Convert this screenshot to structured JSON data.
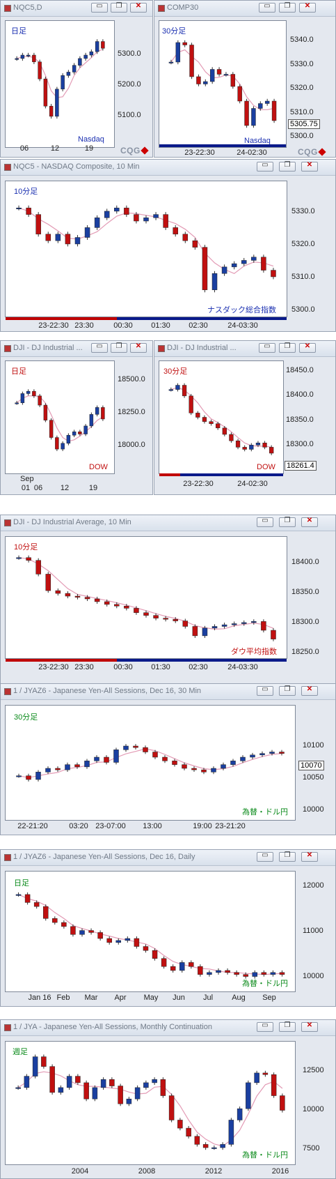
{
  "buttons": {
    "minimize": "▭",
    "restore": "❐",
    "close": "✕"
  },
  "brand": "CQG",
  "colors": {
    "up": "#1a3fa0",
    "down": "#c01010",
    "frame": "#e4e8ef"
  },
  "windows": [
    {
      "id": "nqc5d",
      "title": "NQC5,D",
      "period": "日足",
      "label": "Nasdaq",
      "yticks": [
        "5300.0",
        "5200.0",
        "5100.0"
      ],
      "xticks": [
        "06",
        "12",
        "19"
      ]
    },
    {
      "id": "comp30",
      "title": "COMP30",
      "period": "30分足",
      "label": "Nasdaq",
      "price": "5305.75",
      "yticks": [
        "5340.0",
        "5330.0",
        "5320.0",
        "5310.0",
        "5300.0"
      ],
      "xticks": [
        "23-22:30",
        "24-02:30"
      ]
    },
    {
      "id": "nqc5m",
      "title": "NQC5 - NASDAQ Composite, 10 Min",
      "period": "10分足",
      "label": "ナスダック総合指数",
      "yticks": [
        "5330.0",
        "5320.0",
        "5310.0",
        "5300.0"
      ],
      "xticks": [
        "23-22:30",
        "23:30",
        "00:30",
        "01:30",
        "02:30",
        "24-03:30"
      ]
    },
    {
      "id": "djid",
      "title": "DJI - DJ Industrial ...",
      "period": "日足",
      "label": "DOW",
      "yticks": [
        "18500.0",
        "18250.0",
        "18000.0"
      ],
      "xticks": [
        "01",
        "06",
        "12",
        "19"
      ],
      "xsub": "Sep"
    },
    {
      "id": "dji30",
      "title": "DJI - DJ Industrial ...",
      "period": "30分足",
      "label": "DOW",
      "price": "18261.4",
      "yticks": [
        "18450.0",
        "18400.0",
        "18350.0",
        "18300.0",
        "18250.0"
      ],
      "xticks": [
        "23-22:30",
        "24-02:30"
      ]
    },
    {
      "id": "djim",
      "title": "DJI - DJ Industrial Average, 10 Min",
      "period": "10分足",
      "label": "ダウ平均指数",
      "yticks": [
        "18400.0",
        "18350.0",
        "18300.0",
        "18250.0"
      ],
      "xticks": [
        "23-22:30",
        "23:30",
        "00:30",
        "01:30",
        "02:30",
        "24-03:30"
      ]
    },
    {
      "id": "jy30",
      "title": "1 / JYAZ6 - Japanese Yen-All Sessions, Dec 16, 30 Min",
      "period": "30分足",
      "label": "為替・ドル円",
      "price": "10070",
      "yticks": [
        "10100",
        "10050",
        "10000"
      ],
      "xticks": [
        "22-21:20",
        "03:20",
        "23-07:00",
        "13:00",
        "19:00",
        "23-21:20"
      ]
    },
    {
      "id": "jyd",
      "title": "1 / JYAZ6 - Japanese Yen-All Sessions, Dec 16, Daily",
      "period": "日足",
      "label": "為替・ドル円",
      "yticks": [
        "12000",
        "11000",
        "10000"
      ],
      "xticks": [
        "Jan 16",
        "Feb",
        "Mar",
        "Apr",
        "May",
        "Jun",
        "Jul",
        "Aug",
        "Sep"
      ]
    },
    {
      "id": "jym",
      "title": "1 / JYA - Japanese Yen-All Sessions, Monthly Continuation",
      "period": "週足",
      "label": "為替・ドル円",
      "yticks": [
        "12500",
        "10000",
        "7500"
      ],
      "xticks": [
        "2004",
        "2008",
        "2012",
        "2016"
      ]
    }
  ],
  "chart_data": [
    {
      "type": "candlestick",
      "id": "nqc5d",
      "x_ticks": [
        "06",
        "12",
        "19"
      ],
      "ylim": [
        5050,
        5380
      ],
      "close": [
        5290,
        5300,
        5300,
        5280,
        5230,
        5150,
        5120,
        5200,
        5240,
        5250,
        5270,
        5290,
        5300,
        5310,
        5340,
        5320
      ]
    },
    {
      "type": "candlestick",
      "id": "comp30",
      "x_ticks": [
        "23-22:30",
        "24-02:30"
      ],
      "ylim": [
        5298,
        5344
      ],
      "last": 5305.75,
      "close": [
        5330,
        5338,
        5337,
        5324,
        5321,
        5322,
        5327,
        5325,
        5325,
        5320,
        5314,
        5304,
        5311,
        5313,
        5314,
        5306
      ]
    },
    {
      "type": "candlestick",
      "id": "nqc5m",
      "x_ticks": [
        "23-22:30",
        "23:30",
        "00:30",
        "01:30",
        "02:30",
        "24-03:30"
      ],
      "ylim": [
        5297,
        5334
      ],
      "close": [
        5328,
        5326,
        5320,
        5318,
        5320,
        5317,
        5319,
        5322,
        5325,
        5327,
        5328,
        5326,
        5324,
        5325,
        5326,
        5322,
        5320,
        5318,
        5316,
        5303,
        5308,
        5310,
        5311,
        5312,
        5313,
        5309,
        5307
      ]
    },
    {
      "type": "candlestick",
      "id": "djid",
      "x_ticks": [
        "01",
        "06",
        "12",
        "19"
      ],
      "ylim": [
        17850,
        18700
      ],
      "close": [
        18400,
        18480,
        18500,
        18460,
        18380,
        18250,
        18100,
        18000,
        18050,
        18120,
        18150,
        18130,
        18200,
        18300,
        18360,
        18260
      ]
    },
    {
      "type": "candlestick",
      "id": "dji30",
      "x_ticks": [
        "23-22:30",
        "24-02:30"
      ],
      "ylim": [
        18230,
        18460
      ],
      "last": 18261.4,
      "close": [
        18410,
        18420,
        18395,
        18355,
        18345,
        18335,
        18330,
        18320,
        18305,
        18290,
        18275,
        18270,
        18280,
        18285,
        18275,
        18261
      ]
    },
    {
      "type": "candlestick",
      "id": "djim",
      "x_ticks": [
        "23-22:30",
        "23:30",
        "00:30",
        "01:30",
        "02:30",
        "24-03:30"
      ],
      "ylim": [
        18240,
        18435
      ],
      "close": [
        18410,
        18405,
        18380,
        18350,
        18345,
        18340,
        18338,
        18335,
        18330,
        18325,
        18322,
        18318,
        18310,
        18305,
        18300,
        18298,
        18295,
        18285,
        18268,
        18282,
        18285,
        18288,
        18290,
        18292,
        18294,
        18278,
        18262
      ]
    },
    {
      "type": "candlestick",
      "id": "jy30",
      "x_ticks": [
        "22-21:20",
        "03:20",
        "23-07:00",
        "13:00",
        "19:00",
        "23-21:20"
      ],
      "ylim": [
        9990,
        10125
      ],
      "last": 10070,
      "close": [
        10040,
        10035,
        10045,
        10050,
        10048,
        10055,
        10052,
        10060,
        10065,
        10058,
        10075,
        10080,
        10078,
        10072,
        10065,
        10060,
        10055,
        10050,
        10048,
        10045,
        10050,
        10055,
        10060,
        10065,
        10068,
        10070,
        10072,
        10070
      ]
    },
    {
      "type": "candlestick",
      "id": "jyd",
      "x_ticks": [
        "Jan 16",
        "Feb",
        "Mar",
        "Apr",
        "May",
        "Jun",
        "Jul",
        "Aug",
        "Sep"
      ],
      "ylim": [
        9750,
        12400
      ],
      "close": [
        12000,
        11800,
        11700,
        11400,
        11300,
        11200,
        11000,
        11100,
        11050,
        10900,
        10800,
        10850,
        10900,
        10700,
        10600,
        10400,
        10200,
        10100,
        10300,
        10200,
        10000,
        10050,
        10100,
        10050,
        10000,
        9950,
        10050,
        10000,
        10050,
        10000
      ]
    },
    {
      "type": "candlestick",
      "id": "jym",
      "x_ticks": [
        "2004",
        "2008",
        "2012",
        "2016"
      ],
      "ylim": [
        7200,
        13900
      ],
      "close": [
        11500,
        12200,
        13400,
        12800,
        11200,
        11500,
        12200,
        11800,
        10800,
        11500,
        12000,
        11600,
        10500,
        10800,
        11500,
        11800,
        12000,
        11000,
        9500,
        9000,
        8500,
        8000,
        7800,
        7800,
        8000,
        9500,
        10200,
        11800,
        12400,
        12300,
        11000,
        10100
      ]
    }
  ]
}
